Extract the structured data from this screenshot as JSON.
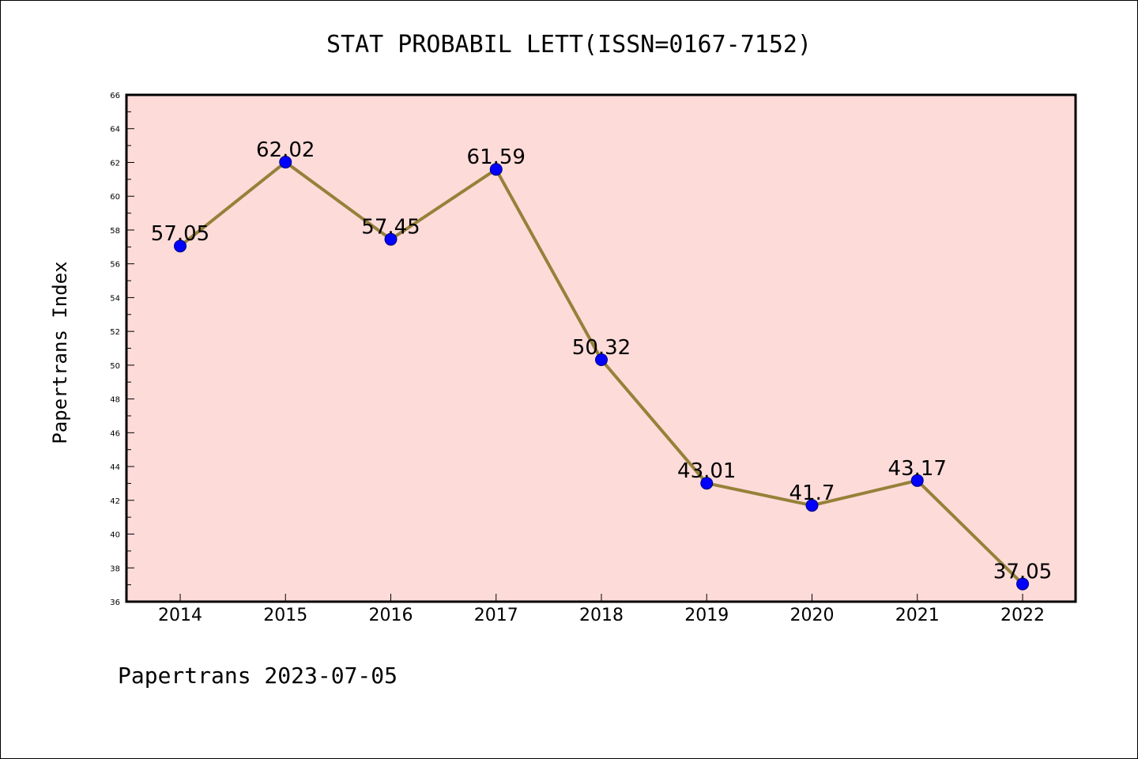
{
  "chart_data": {
    "type": "line",
    "title": "STAT PROBABIL LETT(ISSN=0167-7152)",
    "ylabel": "Papertrans Index",
    "xlabel": "",
    "footer": "Papertrans 2023-07-05",
    "categories": [
      "2014",
      "2015",
      "2016",
      "2017",
      "2018",
      "2019",
      "2020",
      "2021",
      "2022"
    ],
    "series": [
      {
        "values": [
          57.05,
          62.02,
          57.45,
          61.59,
          50.32,
          43.01,
          41.7,
          43.17,
          37.05
        ],
        "labels": [
          "57.05",
          "62.02",
          "57.45",
          "61.59",
          "50.32",
          "43.01",
          "41.7",
          "43.17",
          "37.05"
        ]
      }
    ],
    "ylim": [
      36,
      66
    ],
    "yticks": [
      "36",
      "38",
      "40",
      "42",
      "44",
      "46",
      "48",
      "50",
      "52",
      "54",
      "56",
      "58",
      "60",
      "62",
      "64",
      "66"
    ],
    "grid": false,
    "legend": "none",
    "colors": {
      "plot_background": "#fddbd9",
      "line": "#958139",
      "marker_fill": "#0000ff",
      "marker_edge": "#00007a"
    }
  }
}
